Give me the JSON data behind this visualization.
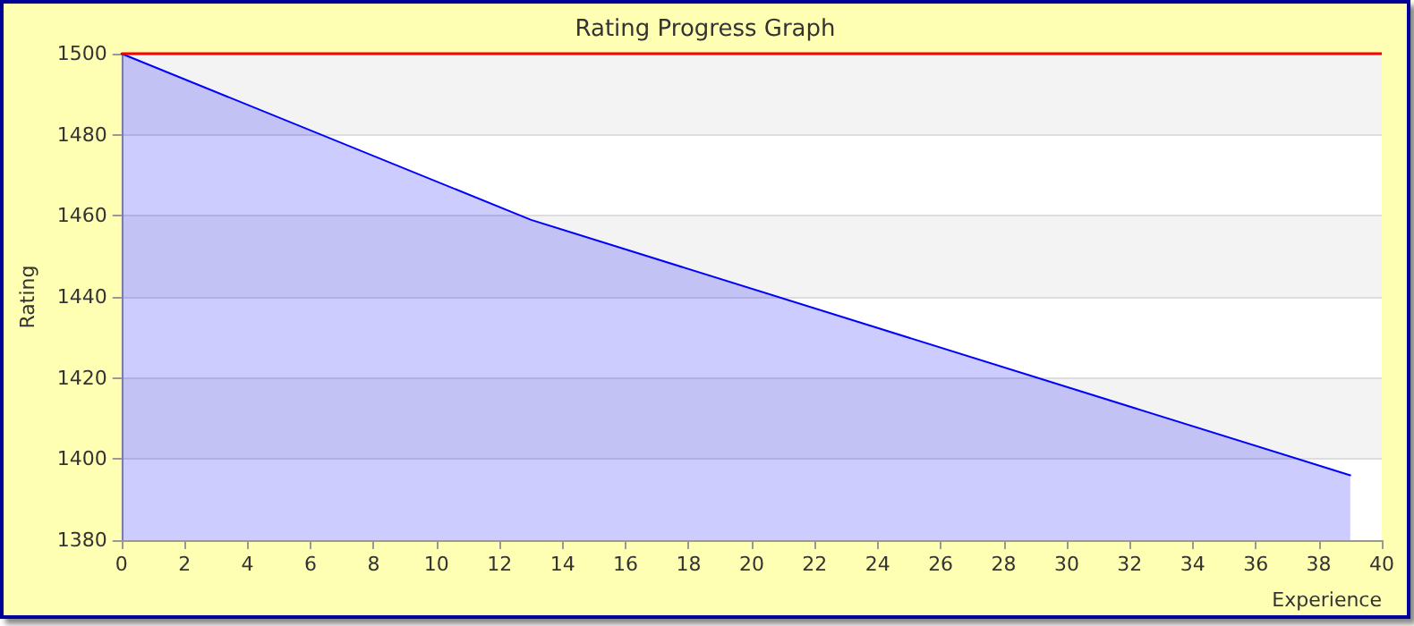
{
  "chart_data": {
    "type": "area",
    "title": "Rating Progress Graph",
    "xlabel": "Experience",
    "ylabel": "Rating",
    "x": [
      0,
      13,
      39
    ],
    "series": [
      {
        "color": "#0000ff",
        "values": [
          1500,
          1459,
          1396
        ]
      }
    ],
    "xlim": [
      0,
      40
    ],
    "xticks": [
      0,
      2,
      4,
      6,
      8,
      10,
      12,
      14,
      16,
      18,
      20,
      22,
      24,
      26,
      28,
      30,
      32,
      34,
      36,
      38,
      40
    ],
    "ylim": [
      1380,
      1500
    ],
    "yticks": [
      1380,
      1400,
      1420,
      1440,
      1460,
      1480,
      1500
    ],
    "ref_lines": [
      {
        "axis": "y",
        "value": 1500,
        "color": "#ff0000"
      }
    ],
    "grid": "y",
    "marker": "none",
    "line_style": "solid"
  }
}
